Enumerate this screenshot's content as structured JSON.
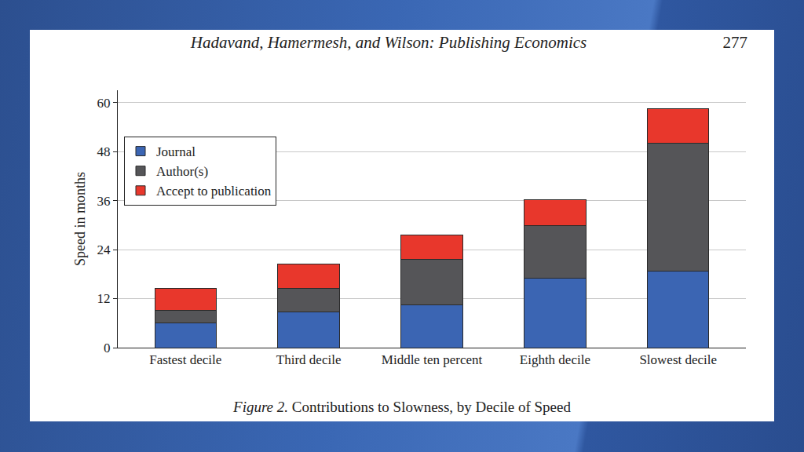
{
  "chart_data": {
    "type": "bar",
    "title": "Figure 2. Contributions to Slowness, by Decile of Speed",
    "annotations": [
      "Hadavand, Hamermesh, and Wilson: Publishing Economics",
      "277"
    ],
    "y_label": "Speed in months",
    "categories": [
      "Fastest decile",
      "Third decile",
      "Middle ten percent",
      "Eighth decile",
      "Slowest decile"
    ],
    "series": [
      {
        "name": "Journal",
        "color": "#3b65b3",
        "values": [
          6.0,
          8.7,
          10.4,
          17.0,
          18.8
        ]
      },
      {
        "name": "Author(s)",
        "color": "#555558",
        "values": [
          3.1,
          5.8,
          11.3,
          12.8,
          31.3
        ]
      },
      {
        "name": "Accept to publication",
        "color": "#e8372c",
        "values": [
          5.4,
          6.0,
          5.8,
          6.4,
          8.3
        ]
      }
    ],
    "stacked": true,
    "ylim": [
      0,
      63
    ],
    "yticks": [
      0,
      12,
      24,
      36,
      48,
      60
    ],
    "grid": true,
    "legend": "upper left"
  }
}
